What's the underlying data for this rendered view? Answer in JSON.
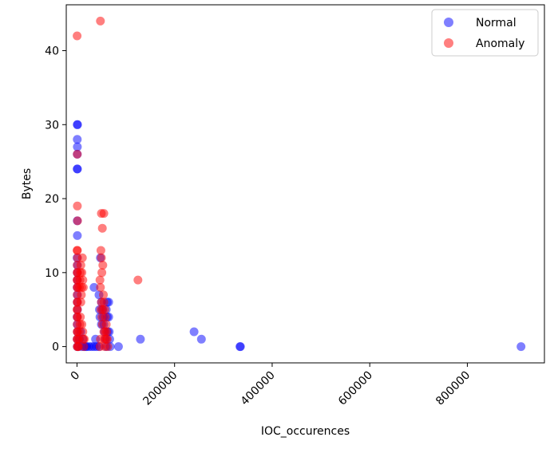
{
  "chart_data": {
    "type": "scatter",
    "xlabel": "IOC_occurences",
    "ylabel": "Bytes",
    "xlim": [
      -22000,
      958000
    ],
    "ylim": [
      -2.2,
      46.2
    ],
    "xticks": [
      0,
      200000,
      400000,
      600000,
      800000
    ],
    "xtick_labels": [
      "0",
      "200000",
      "400000",
      "600000",
      "800000"
    ],
    "yticks": [
      0,
      10,
      20,
      30,
      40
    ],
    "ytick_labels": [
      "0",
      "10",
      "20",
      "30",
      "40"
    ],
    "grid": false,
    "legend_position": "top-right",
    "series": [
      {
        "name": "Normal",
        "color": "#0000ff",
        "points": [
          [
            500,
            30
          ],
          [
            1000,
            30
          ],
          [
            500,
            28
          ],
          [
            800,
            27
          ],
          [
            600,
            26
          ],
          [
            400,
            24
          ],
          [
            900,
            24
          ],
          [
            500,
            17
          ],
          [
            700,
            15
          ],
          [
            300,
            12
          ],
          [
            800,
            11
          ],
          [
            500,
            10
          ],
          [
            600,
            9
          ],
          [
            400,
            8
          ],
          [
            700,
            7
          ],
          [
            500,
            6
          ],
          [
            900,
            5
          ],
          [
            300,
            4
          ],
          [
            600,
            3
          ],
          [
            800,
            2
          ],
          [
            400,
            1
          ],
          [
            500,
            0
          ],
          [
            3000,
            0
          ],
          [
            5000,
            1
          ],
          [
            8000,
            2
          ],
          [
            10000,
            0
          ],
          [
            12000,
            1
          ],
          [
            15000,
            0
          ],
          [
            18000,
            0
          ],
          [
            20000,
            0
          ],
          [
            25000,
            0
          ],
          [
            30000,
            0
          ],
          [
            35000,
            0
          ],
          [
            38000,
            1
          ],
          [
            35000,
            8
          ],
          [
            40000,
            0
          ],
          [
            45000,
            0
          ],
          [
            45000,
            7
          ],
          [
            46000,
            5
          ],
          [
            47000,
            4
          ],
          [
            48000,
            12
          ],
          [
            50000,
            6
          ],
          [
            50000,
            3
          ],
          [
            52000,
            5
          ],
          [
            54000,
            4
          ],
          [
            55000,
            3
          ],
          [
            56000,
            2
          ],
          [
            58000,
            1
          ],
          [
            60000,
            0
          ],
          [
            60000,
            5
          ],
          [
            62000,
            4
          ],
          [
            62000,
            6
          ],
          [
            63000,
            2
          ],
          [
            65000,
            6
          ],
          [
            65000,
            4
          ],
          [
            66000,
            2
          ],
          [
            67000,
            1
          ],
          [
            68000,
            0
          ],
          [
            85000,
            0
          ],
          [
            130000,
            1
          ],
          [
            240000,
            2
          ],
          [
            255000,
            1
          ],
          [
            335000,
            0
          ],
          [
            334000,
            0
          ],
          [
            910000,
            0
          ]
        ]
      },
      {
        "name": "Anomaly",
        "color": "#ff0000",
        "points": [
          [
            200,
            42
          ],
          [
            600,
            26
          ],
          [
            800,
            19
          ],
          [
            1000,
            17
          ],
          [
            300,
            13
          ],
          [
            700,
            13
          ],
          [
            900,
            12
          ],
          [
            400,
            11
          ],
          [
            600,
            10
          ],
          [
            800,
            10
          ],
          [
            300,
            9
          ],
          [
            700,
            9
          ],
          [
            500,
            8
          ],
          [
            900,
            8
          ],
          [
            400,
            7
          ],
          [
            600,
            6
          ],
          [
            800,
            6
          ],
          [
            300,
            5
          ],
          [
            700,
            5
          ],
          [
            500,
            4
          ],
          [
            900,
            4
          ],
          [
            400,
            3
          ],
          [
            600,
            2
          ],
          [
            800,
            2
          ],
          [
            300,
            1
          ],
          [
            700,
            1
          ],
          [
            500,
            0
          ],
          [
            1200,
            0
          ],
          [
            3000,
            0
          ],
          [
            4000,
            1
          ],
          [
            5000,
            2
          ],
          [
            6000,
            3
          ],
          [
            7000,
            4
          ],
          [
            8000,
            6
          ],
          [
            9000,
            7
          ],
          [
            9500,
            8
          ],
          [
            10000,
            10
          ],
          [
            11000,
            12
          ],
          [
            12000,
            9
          ],
          [
            13000,
            8
          ],
          [
            14000,
            0
          ],
          [
            15000,
            1
          ],
          [
            5000,
            8
          ],
          [
            6000,
            9
          ],
          [
            7000,
            10
          ],
          [
            8000,
            11
          ],
          [
            10000,
            3
          ],
          [
            12000,
            2
          ],
          [
            13000,
            1
          ],
          [
            48000,
            44
          ],
          [
            50000,
            18
          ],
          [
            52000,
            16
          ],
          [
            55000,
            18
          ],
          [
            49000,
            13
          ],
          [
            50000,
            12
          ],
          [
            51000,
            10
          ],
          [
            47000,
            9
          ],
          [
            48000,
            8
          ],
          [
            53000,
            11
          ],
          [
            54000,
            7
          ],
          [
            50000,
            6
          ],
          [
            49000,
            5
          ],
          [
            51000,
            4
          ],
          [
            52000,
            3
          ],
          [
            55000,
            2
          ],
          [
            56000,
            1
          ],
          [
            57000,
            0
          ],
          [
            58000,
            4
          ],
          [
            60000,
            3
          ],
          [
            61000,
            2
          ],
          [
            62000,
            1
          ],
          [
            63000,
            0
          ],
          [
            53000,
            5
          ],
          [
            55000,
            6
          ],
          [
            57000,
            5
          ],
          [
            58000,
            2
          ],
          [
            48000,
            1
          ],
          [
            47000,
            0
          ],
          [
            60000,
            1
          ],
          [
            125000,
            9
          ]
        ]
      }
    ]
  }
}
